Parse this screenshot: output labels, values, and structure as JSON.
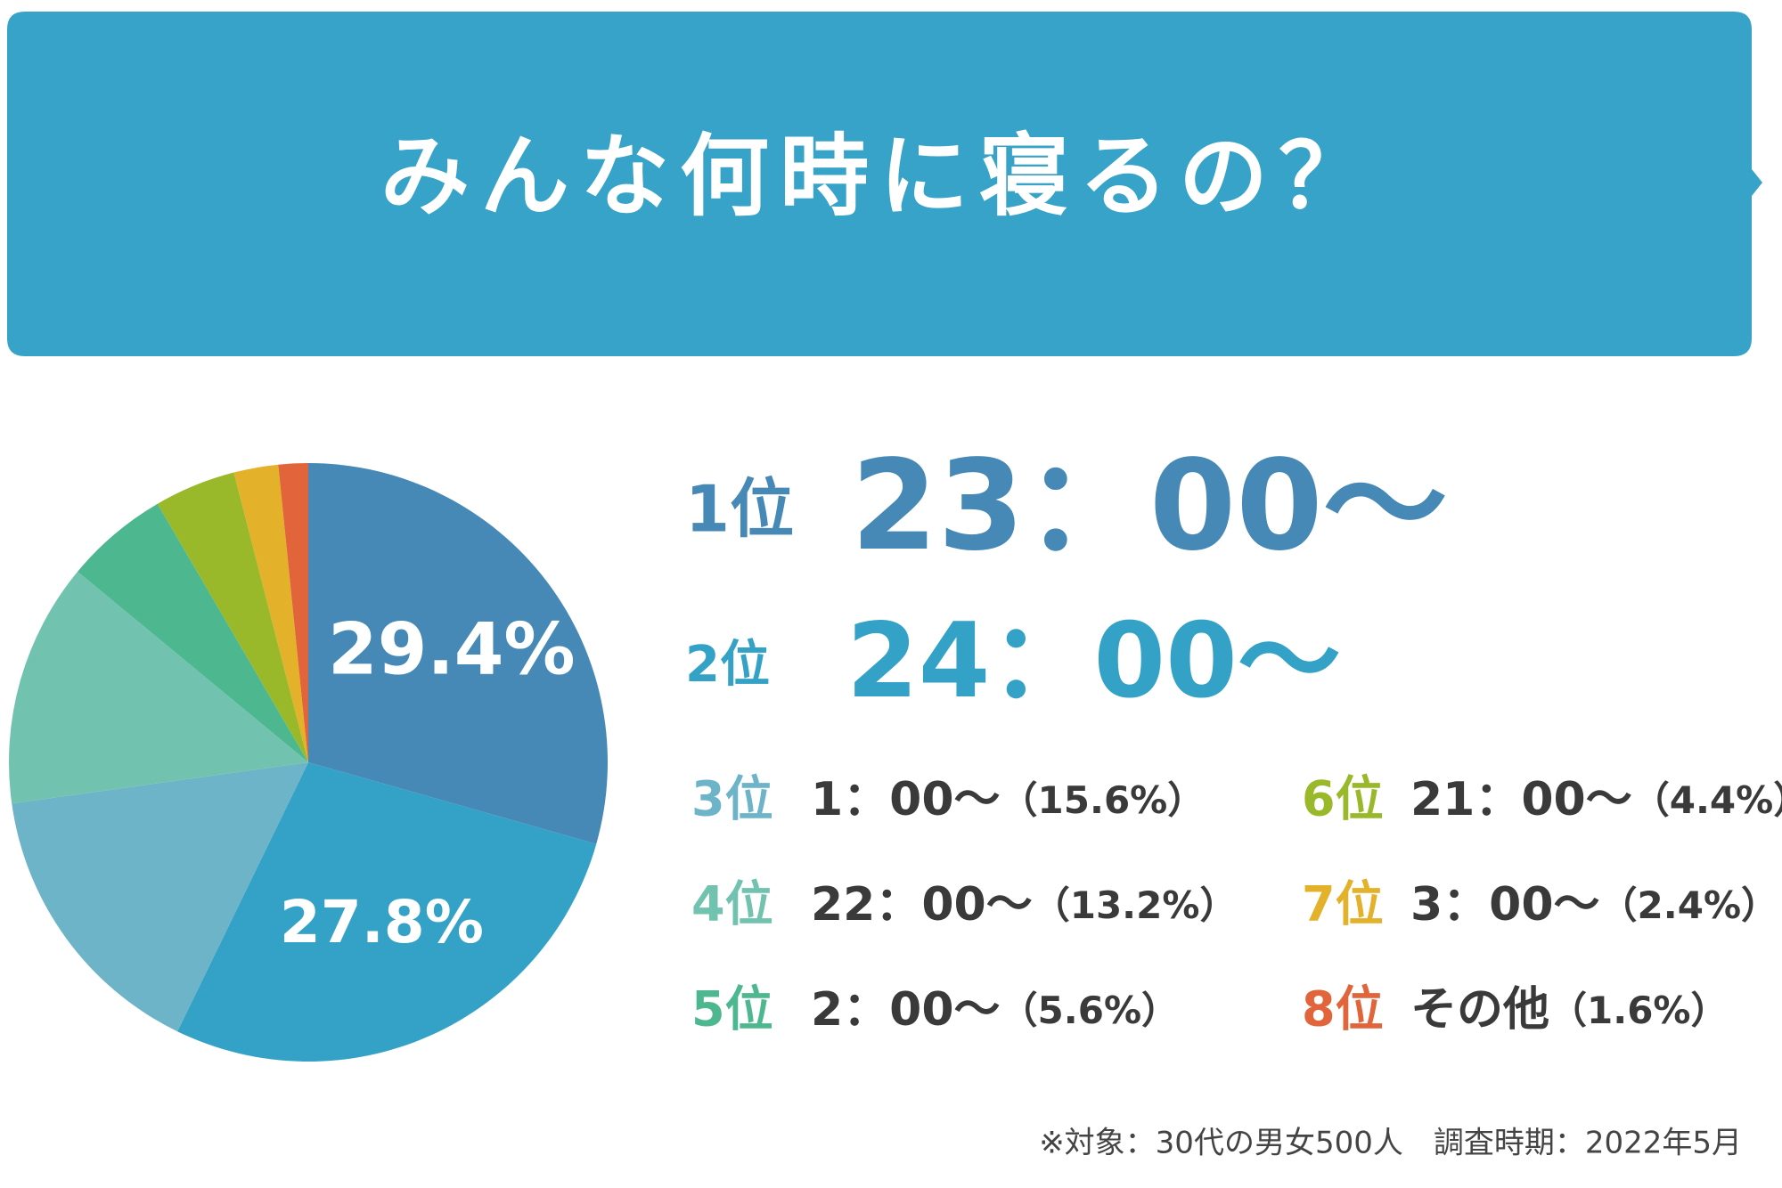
{
  "chart_data": {
    "type": "pie",
    "title": "みんな何時に寝るの？",
    "ranks": [
      "1位",
      "2位",
      "3位",
      "4位",
      "5位",
      "6位",
      "7位",
      "8位"
    ],
    "categories": [
      "23：00〜",
      "24：00〜",
      "1：00〜",
      "22：00〜",
      "2：00〜",
      "21：00〜",
      "3：00〜",
      "その他"
    ],
    "values": [
      29.4,
      27.8,
      15.6,
      13.2,
      5.6,
      4.4,
      2.4,
      1.6
    ],
    "value_labels": [
      "29.4%",
      "27.8%",
      "（15.6%）",
      "（13.2%）",
      "（5.6%）",
      "（4.4%）",
      "（2.4%）",
      "（1.6%）"
    ],
    "colors": [
      "#4689b6",
      "#33a2c6",
      "#6db4c8",
      "#72c2b0",
      "#4db890",
      "#9ab92a",
      "#e3b12a",
      "#e1643a"
    ],
    "note": "※対象：30代の男女500人　調査時期：2022年5月"
  }
}
